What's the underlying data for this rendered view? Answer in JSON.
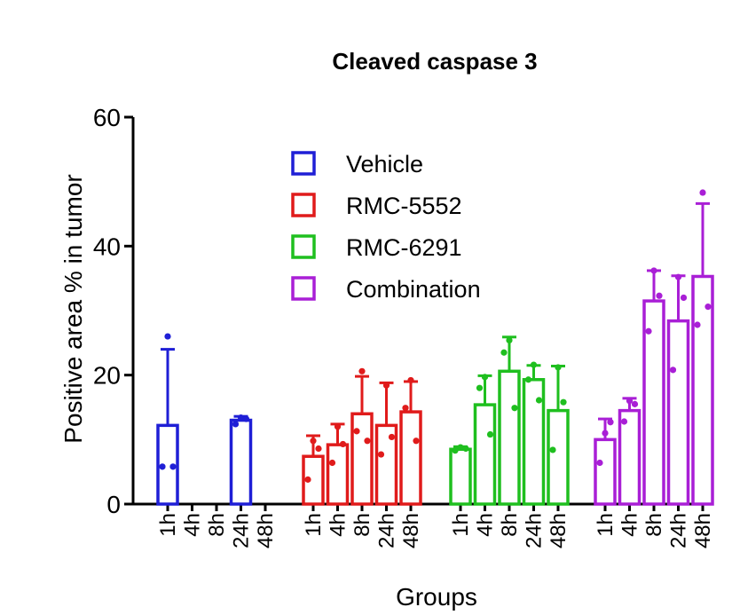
{
  "chart_data": {
    "type": "bar",
    "title": "Cleaved caspase 3",
    "xlabel": "Groups",
    "ylabel": "Positive area % in tumor",
    "ylim": [
      0,
      60
    ],
    "yticks": [
      0,
      20,
      40,
      60
    ],
    "categories": [
      "1h",
      "4h",
      "8h",
      "24h",
      "48h"
    ],
    "legend_position": "top-center",
    "grid": false,
    "series": [
      {
        "name": "Vehicle",
        "color": "#1f1fd6",
        "values": [
          12.2,
          null,
          null,
          13.0,
          null
        ],
        "error": [
          11.8,
          null,
          null,
          0.6,
          null
        ],
        "points": [
          [
            26.0,
            5.8,
            5.8
          ],
          [],
          [],
          [
            13.4,
            12.4,
            13.2
          ],
          []
        ]
      },
      {
        "name": "RMC-5552",
        "color": "#e01b1b",
        "values": [
          7.4,
          9.2,
          14.0,
          12.2,
          14.3
        ],
        "error": [
          3.2,
          3.2,
          5.8,
          6.6,
          4.7
        ],
        "points": [
          [
            9.8,
            3.8,
            8.6
          ],
          [
            12.0,
            6.4,
            9.3
          ],
          [
            20.6,
            11.3,
            9.8
          ],
          [
            18.4,
            7.7,
            10.4
          ],
          [
            19.2,
            14.9,
            9.8
          ]
        ]
      },
      {
        "name": "RMC-6291",
        "color": "#1fbf1f",
        "values": [
          8.5,
          15.4,
          20.6,
          19.3,
          14.5
        ],
        "error": [
          0.4,
          4.5,
          5.3,
          2.2,
          6.9
        ],
        "points": [
          [
            8.8,
            8.3,
            8.6
          ],
          [
            19.7,
            18.0,
            10.8
          ],
          [
            25.4,
            23.5,
            14.9
          ],
          [
            21.6,
            19.3,
            16.1
          ],
          [
            21.2,
            8.4,
            15.8
          ]
        ]
      },
      {
        "name": "Combination",
        "color": "#a91fd6",
        "values": [
          10.0,
          14.5,
          31.5,
          28.4,
          35.3
        ],
        "error": [
          3.2,
          1.9,
          4.7,
          7.0,
          11.3
        ],
        "points": [
          [
            11.0,
            6.4,
            12.7
          ],
          [
            16.0,
            12.8,
            15.5
          ],
          [
            36.2,
            26.8,
            32.3
          ],
          [
            35.2,
            20.8,
            32.0
          ],
          [
            48.3,
            27.8,
            30.6
          ]
        ]
      }
    ]
  }
}
